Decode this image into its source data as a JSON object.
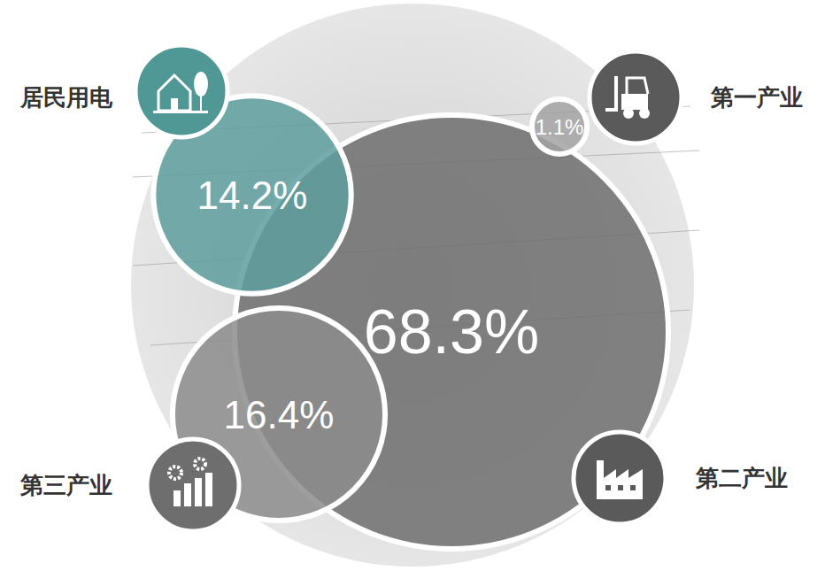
{
  "chart_data": {
    "type": "bubble",
    "categories": [
      "居民用电",
      "第一产业",
      "第二产业",
      "第三产业"
    ],
    "values": [
      14.2,
      1.1,
      68.3,
      16.4
    ],
    "value_labels": [
      "14.2%",
      "1.1%",
      "68.3%",
      "16.4%"
    ],
    "colors": [
      "#5e9f9d",
      "#a3a3a3",
      "#6f6f6f",
      "#8c8c8c"
    ],
    "data_labels": true
  }
}
